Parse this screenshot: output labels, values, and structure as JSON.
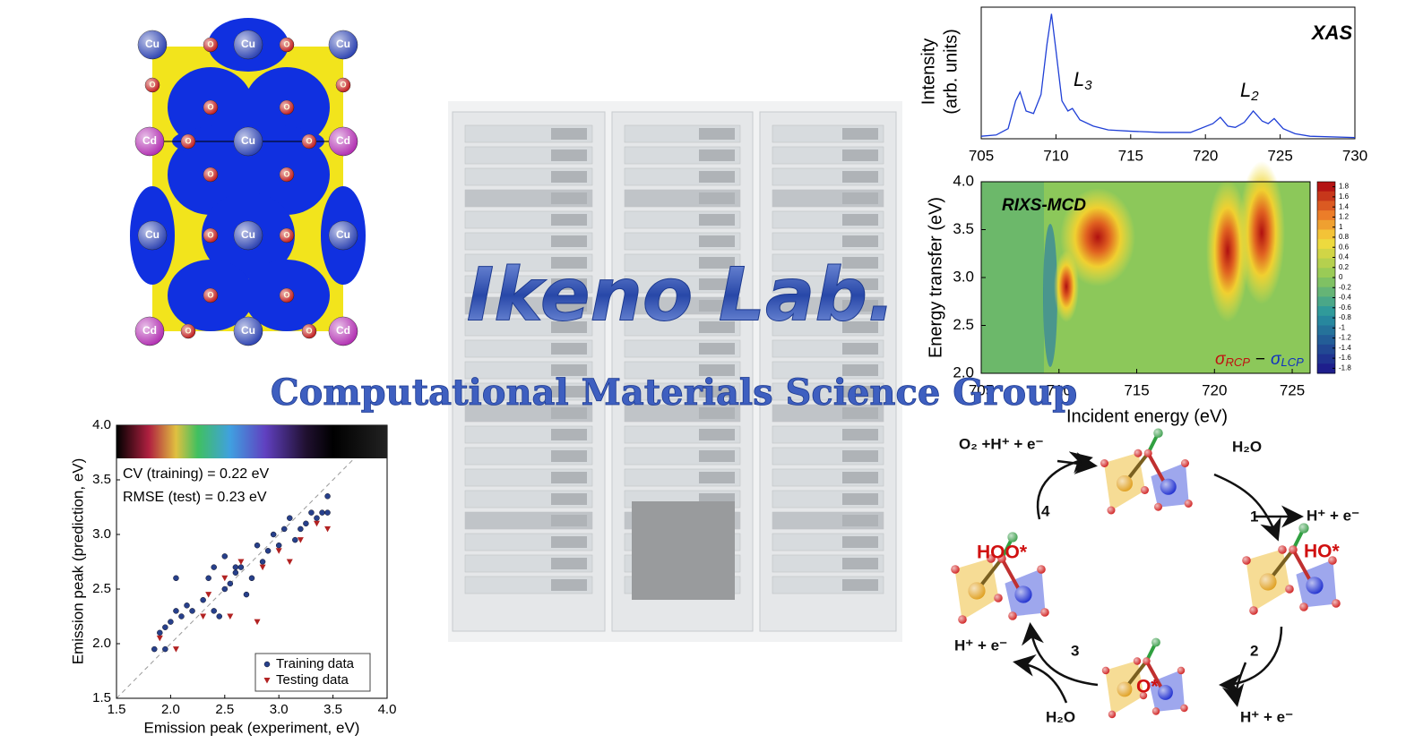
{
  "title": "Ikeno Lab.",
  "subtitle": "Computational Materials Science Group",
  "crystal": {
    "atoms": [
      "Cu",
      "Cu",
      "Cu",
      "Cd",
      "Cu",
      "Cd",
      "Cu",
      "Cu",
      "Cu",
      "Cd",
      "Cu",
      "Cd",
      "O",
      "O",
      "O",
      "O",
      "O",
      "O",
      "O",
      "O",
      "O",
      "O",
      "O",
      "O",
      "O",
      "O",
      "O",
      "O"
    ]
  },
  "xas": {
    "type": "line",
    "ylabel_lines": [
      "Intensity",
      "(arb. units)"
    ],
    "annotations": [
      {
        "text": "XAS"
      },
      {
        "base": "L",
        "sub": "3"
      },
      {
        "base": "L",
        "sub": "2"
      }
    ],
    "color": "#1f3fd6",
    "xlim": [
      705,
      730
    ],
    "xticks": [
      705,
      710,
      715,
      720,
      725,
      730
    ],
    "ylim": [
      0,
      1
    ],
    "x": [
      705,
      706,
      706.8,
      707.3,
      707.6,
      708,
      708.5,
      709,
      709.4,
      709.7,
      710,
      710.4,
      710.8,
      711.1,
      711.6,
      712.5,
      713.5,
      715,
      717,
      719,
      720.5,
      721,
      721.5,
      722,
      722.6,
      723.2,
      723.8,
      724.2,
      724.6,
      725.2,
      726,
      727,
      730
    ],
    "values": [
      0.02,
      0.03,
      0.08,
      0.3,
      0.37,
      0.22,
      0.2,
      0.35,
      0.75,
      0.99,
      0.7,
      0.3,
      0.22,
      0.24,
      0.15,
      0.1,
      0.07,
      0.06,
      0.05,
      0.05,
      0.12,
      0.17,
      0.1,
      0.09,
      0.13,
      0.22,
      0.14,
      0.12,
      0.16,
      0.08,
      0.04,
      0.02,
      0.01
    ]
  },
  "rixs": {
    "type": "contour",
    "xlabel": "Incident energy (eV)",
    "ylabel": "Energy transfer (eV)",
    "annotation": "RIXS-MCD",
    "formula": [
      "σ",
      "RCP",
      "−",
      "σ",
      "LCP"
    ],
    "xlim": [
      705,
      726.15
    ],
    "xticks": [
      705,
      710,
      715,
      720,
      725
    ],
    "ylim": [
      2,
      4
    ],
    "yticks": [
      {
        "value": 2,
        "label": "2.0"
      },
      2.5,
      {
        "value": 3,
        "label": "3.0"
      },
      3.5,
      {
        "value": 4,
        "label": "4.0"
      }
    ],
    "clim": [
      -1.9,
      1.9
    ],
    "cticks": [
      1.8,
      1.6,
      1.4,
      1.2,
      1,
      0.8,
      0.6,
      0.4,
      0.2,
      0,
      -0.2,
      -0.4,
      -0.6,
      -0.8,
      -1,
      -1.2,
      -1.4,
      -1.6,
      -1.8
    ]
  },
  "scatter": {
    "type": "scatter",
    "xlabel": "Emission peak (experiment, eV)",
    "ylabel": "Emission peak (prediction, eV)",
    "annotations": [
      "CV (training) = 0.22 eV",
      "RMSE (test) = 0.23 eV"
    ],
    "xlim": [
      1.5,
      4
    ],
    "ylim": [
      1.5,
      4
    ],
    "xticks": [
      1.5,
      {
        "value": 2,
        "label": "2.0"
      },
      2.5,
      {
        "value": 3,
        "label": "3.0"
      },
      3.5,
      {
        "value": 4,
        "label": "4.0"
      }
    ],
    "yticks": [
      1.5,
      {
        "value": 2,
        "label": "2.0"
      },
      2.5,
      {
        "value": 3,
        "label": "3.0"
      },
      3.5,
      {
        "value": 4,
        "label": "4.0"
      }
    ],
    "legend": "lower right",
    "series": [
      {
        "name": "Training data",
        "color": "#27408b",
        "marker": "circle",
        "x": [
          1.85,
          1.9,
          1.95,
          1.95,
          2.0,
          2.05,
          2.1,
          2.15,
          2.2,
          2.05,
          2.3,
          2.35,
          2.4,
          2.45,
          2.5,
          2.5,
          2.55,
          2.6,
          2.65,
          2.7,
          2.75,
          2.8,
          2.85,
          2.9,
          2.95,
          3.0,
          3.05,
          3.1,
          3.15,
          3.2,
          3.25,
          3.3,
          3.35,
          3.4,
          3.45,
          3.45,
          2.6,
          2.4
        ],
        "values": [
          1.95,
          2.1,
          2.15,
          1.95,
          2.2,
          2.3,
          2.25,
          2.35,
          2.3,
          2.6,
          2.4,
          2.6,
          2.7,
          2.25,
          2.8,
          2.5,
          2.55,
          2.65,
          2.7,
          2.45,
          2.6,
          2.9,
          2.75,
          2.85,
          3.0,
          2.9,
          3.05,
          3.15,
          2.95,
          3.05,
          3.1,
          3.2,
          3.15,
          3.2,
          3.35,
          3.2,
          2.7,
          2.3
        ]
      },
      {
        "name": "Testing data",
        "color": "#b22222",
        "marker": "triangle",
        "x": [
          1.9,
          2.05,
          2.3,
          2.35,
          2.5,
          2.55,
          2.65,
          2.8,
          2.85,
          3.0,
          3.1,
          3.2,
          3.35,
          3.45
        ],
        "values": [
          2.05,
          1.95,
          2.25,
          2.45,
          2.6,
          2.25,
          2.75,
          2.2,
          2.7,
          2.85,
          2.75,
          2.95,
          3.1,
          3.05
        ]
      }
    ]
  },
  "cycle": {
    "labels": [
      "O₂ +H⁺ + e⁻",
      "H₂O",
      "1",
      "H⁺ + e⁻",
      "HO*",
      "2",
      "H⁺ + e⁻",
      "O*",
      "3",
      "H⁺ + e⁻",
      "H₂O",
      "HOO*",
      "4"
    ]
  }
}
